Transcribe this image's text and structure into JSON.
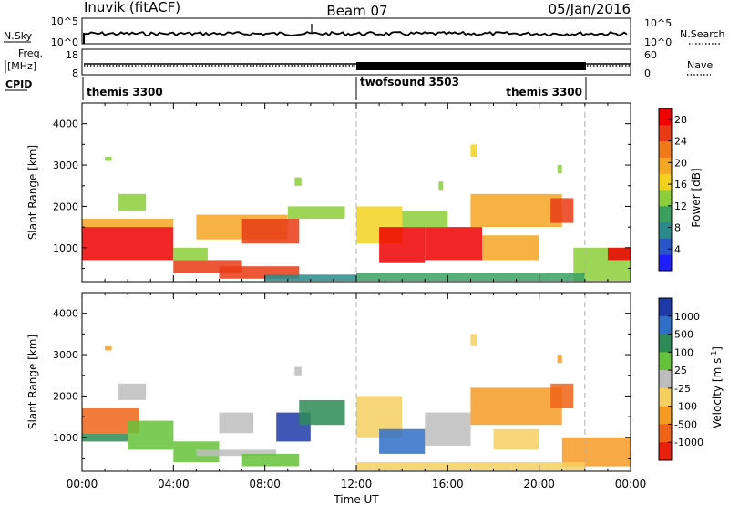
{
  "header": {
    "station": "Inuvik (fitACF)",
    "beam": "Beam 07",
    "date": "05/Jan/2016"
  },
  "summary_panels": {
    "nsky": {
      "label": "N.Sky",
      "ticks": [
        "10^5",
        "10^0"
      ],
      "right_ticks": [
        "10^5",
        "10^0"
      ],
      "right_label": "N.Search"
    },
    "freq": {
      "label_lines": [
        "Freq.",
        "[MHz]"
      ],
      "ticks": [
        "18",
        "8"
      ],
      "right_ticks": [
        "60",
        "0"
      ],
      "right_label": "Nave"
    },
    "cpid": {
      "label": "CPID",
      "segments": [
        {
          "name": "themis 3300",
          "start": 0,
          "end": 12
        },
        {
          "name": "twofsound 3503",
          "start": 12,
          "end": 22
        },
        {
          "name": "themis 3300",
          "start": 22,
          "end": 24
        }
      ],
      "label_alignment": [
        "left",
        "left",
        "right"
      ]
    }
  },
  "chart_data": [
    {
      "type": "heatmap",
      "title": "",
      "xlabel": "",
      "ylabel": "Slant Range [km]",
      "xlim": [
        0,
        24
      ],
      "ylim": [
        180,
        4500
      ],
      "yticks": [
        "1000",
        "2000",
        "3000",
        "4000"
      ],
      "colorbar": {
        "label": "Power [dB]",
        "ticks": [
          "4",
          "8",
          "12",
          "16",
          "20",
          "24",
          "28"
        ],
        "range": [
          0,
          30
        ],
        "colors": [
          "#1e1eff",
          "#2a55c8",
          "#2a8a8a",
          "#3aa060",
          "#8ccf3a",
          "#f2d21e",
          "#f5a623",
          "#f07a18",
          "#e83a14",
          "#ee0000"
        ]
      },
      "cells": [
        {
          "t0": 0.0,
          "t1": 4.0,
          "r0": 700,
          "r1": 1500,
          "v": 28
        },
        {
          "t0": 0.0,
          "t1": 4.0,
          "r0": 1500,
          "r1": 1700,
          "v": 20
        },
        {
          "t0": 1.6,
          "t1": 2.8,
          "r0": 1900,
          "r1": 2300,
          "v": 14
        },
        {
          "t0": 4.0,
          "t1": 7.0,
          "r0": 400,
          "r1": 700,
          "v": 26
        },
        {
          "t0": 4.0,
          "t1": 5.5,
          "r0": 700,
          "r1": 1000,
          "v": 12
        },
        {
          "t0": 6.0,
          "t1": 9.5,
          "r0": 250,
          "r1": 550,
          "v": 25
        },
        {
          "t0": 5.0,
          "t1": 9.0,
          "r0": 1200,
          "r1": 1800,
          "v": 18
        },
        {
          "t0": 7.0,
          "t1": 9.5,
          "r0": 1100,
          "r1": 1700,
          "v": 26
        },
        {
          "t0": 9.0,
          "t1": 11.5,
          "r0": 1700,
          "r1": 2000,
          "v": 14
        },
        {
          "t0": 8.0,
          "t1": 12.0,
          "r0": 200,
          "r1": 350,
          "v": 8
        },
        {
          "t0": 12.0,
          "t1": 14.0,
          "r0": 1100,
          "r1": 2000,
          "v": 16
        },
        {
          "t0": 13.0,
          "t1": 15.0,
          "r0": 650,
          "r1": 1500,
          "v": 28
        },
        {
          "t0": 15.0,
          "t1": 17.5,
          "r0": 700,
          "r1": 1500,
          "v": 27
        },
        {
          "t0": 14.0,
          "t1": 16.0,
          "r0": 1500,
          "r1": 1900,
          "v": 14
        },
        {
          "t0": 17.5,
          "t1": 20.0,
          "r0": 700,
          "r1": 1300,
          "v": 20
        },
        {
          "t0": 17.0,
          "t1": 21.0,
          "r0": 1500,
          "r1": 2300,
          "v": 18
        },
        {
          "t0": 20.5,
          "t1": 21.5,
          "r0": 1600,
          "r1": 2200,
          "v": 24
        },
        {
          "t0": 21.5,
          "t1": 24.0,
          "r0": 200,
          "r1": 1000,
          "v": 12
        },
        {
          "t0": 23.0,
          "t1": 24.0,
          "r0": 700,
          "r1": 1000,
          "v": 28
        },
        {
          "t0": 12.0,
          "t1": 22.0,
          "r0": 200,
          "r1": 400,
          "v": 10
        },
        {
          "t0": 1.0,
          "t1": 1.3,
          "r0": 3100,
          "r1": 3200,
          "v": 12
        },
        {
          "t0": 9.3,
          "t1": 9.6,
          "r0": 2500,
          "r1": 2700,
          "v": 14
        },
        {
          "t0": 15.6,
          "t1": 15.8,
          "r0": 2400,
          "r1": 2600,
          "v": 12
        },
        {
          "t0": 17.0,
          "t1": 17.3,
          "r0": 3200,
          "r1": 3500,
          "v": 16
        },
        {
          "t0": 20.8,
          "t1": 21.0,
          "r0": 2800,
          "r1": 3000,
          "v": 14
        }
      ]
    },
    {
      "type": "heatmap",
      "title": "",
      "xlabel": "Time UT",
      "ylabel": "Slant Range [km]",
      "xlim": [
        0,
        24
      ],
      "ylim": [
        180,
        4500
      ],
      "xticks": [
        "00:00",
        "04:00",
        "08:00",
        "12:00",
        "16:00",
        "20:00",
        "00:00"
      ],
      "yticks": [
        "1000",
        "2000",
        "3000",
        "4000"
      ],
      "colorbar": {
        "label_parts": [
          "Velocity  [m s",
          "-1",
          "]"
        ],
        "ticks": [
          "1000",
          "500",
          "100",
          "25",
          "-25",
          "-100",
          "-500",
          "-1000"
        ],
        "categories": [
          "1000",
          "500",
          "100",
          "25",
          "-25",
          "-100",
          "-500",
          "-1000"
        ],
        "colors": [
          "#1e3aa8",
          "#2f6fc8",
          "#2e8b57",
          "#66c23a",
          "#bdbdbd",
          "#f5d060",
          "#f59a23",
          "#f06418",
          "#e8200e"
        ]
      },
      "cells": [
        {
          "t0": 0.0,
          "t1": 2.5,
          "r0": 1100,
          "r1": 1700,
          "cat": 7
        },
        {
          "t0": 0.0,
          "t1": 2.0,
          "r0": 900,
          "r1": 1100,
          "cat": 2
        },
        {
          "t0": 2.0,
          "t1": 4.0,
          "r0": 700,
          "r1": 1400,
          "cat": 3
        },
        {
          "t0": 1.6,
          "t1": 2.8,
          "r0": 1900,
          "r1": 2300,
          "cat": 4
        },
        {
          "t0": 4.0,
          "t1": 6.0,
          "r0": 400,
          "r1": 900,
          "cat": 3
        },
        {
          "t0": 5.0,
          "t1": 8.5,
          "r0": 550,
          "r1": 700,
          "cat": 4
        },
        {
          "t0": 6.0,
          "t1": 7.5,
          "r0": 1100,
          "r1": 1600,
          "cat": 4
        },
        {
          "t0": 7.0,
          "t1": 9.5,
          "r0": 300,
          "r1": 600,
          "cat": 3
        },
        {
          "t0": 8.5,
          "t1": 10.0,
          "r0": 900,
          "r1": 1600,
          "cat": 0
        },
        {
          "t0": 9.5,
          "t1": 11.5,
          "r0": 1300,
          "r1": 1900,
          "cat": 2
        },
        {
          "t0": 12.0,
          "t1": 14.0,
          "r0": 1000,
          "r1": 2000,
          "cat": 5
        },
        {
          "t0": 13.0,
          "t1": 15.0,
          "r0": 600,
          "r1": 1200,
          "cat": 1
        },
        {
          "t0": 15.0,
          "t1": 17.0,
          "r0": 800,
          "r1": 1600,
          "cat": 4
        },
        {
          "t0": 17.0,
          "t1": 21.0,
          "r0": 1300,
          "r1": 2200,
          "cat": 6
        },
        {
          "t0": 18.0,
          "t1": 20.0,
          "r0": 700,
          "r1": 1200,
          "cat": 5
        },
        {
          "t0": 20.5,
          "t1": 21.5,
          "r0": 1700,
          "r1": 2300,
          "cat": 7
        },
        {
          "t0": 21.0,
          "t1": 24.0,
          "r0": 300,
          "r1": 1000,
          "cat": 6
        },
        {
          "t0": 12.0,
          "t1": 22.0,
          "r0": 200,
          "r1": 400,
          "cat": 5
        },
        {
          "t0": 1.0,
          "t1": 1.3,
          "r0": 3100,
          "r1": 3200,
          "cat": 6
        },
        {
          "t0": 9.3,
          "t1": 9.6,
          "r0": 2500,
          "r1": 2700,
          "cat": 4
        },
        {
          "t0": 17.0,
          "t1": 17.3,
          "r0": 3200,
          "r1": 3500,
          "cat": 5
        },
        {
          "t0": 20.8,
          "t1": 21.0,
          "r0": 2800,
          "r1": 3000,
          "cat": 6
        }
      ]
    }
  ]
}
